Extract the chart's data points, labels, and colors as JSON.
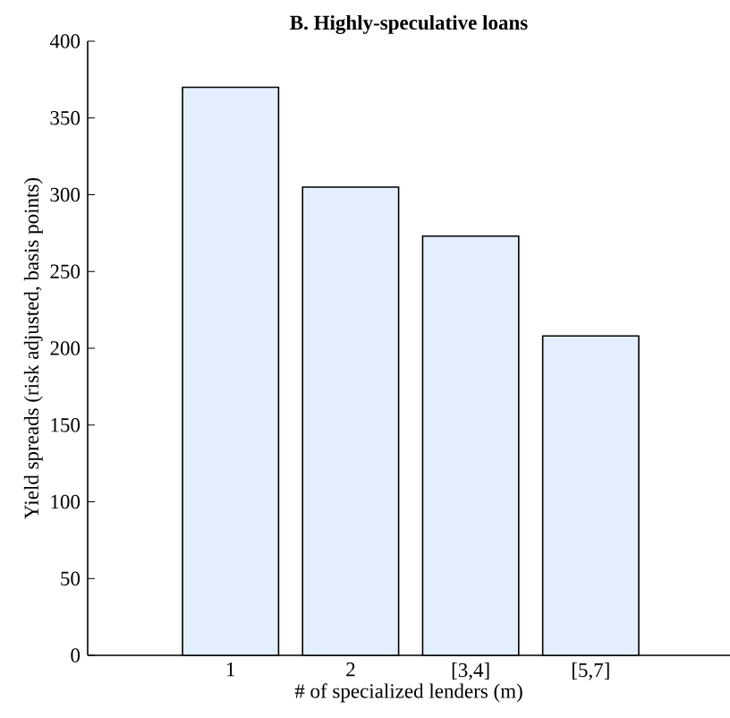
{
  "chart_data": {
    "type": "bar",
    "title": "B. Highly-speculative loans",
    "xlabel": "# of specialized lenders (m)",
    "ylabel": "Yield spreads (risk adjusted, basis points)",
    "categories": [
      "1",
      "2",
      "[3,4]",
      "[5,7]"
    ],
    "values": [
      370,
      305,
      273,
      208
    ],
    "color": "#e3efff",
    "ylim": [
      0,
      400
    ],
    "yticks": [
      0,
      50,
      100,
      150,
      200,
      250,
      300,
      350,
      400
    ],
    "grid": false
  }
}
